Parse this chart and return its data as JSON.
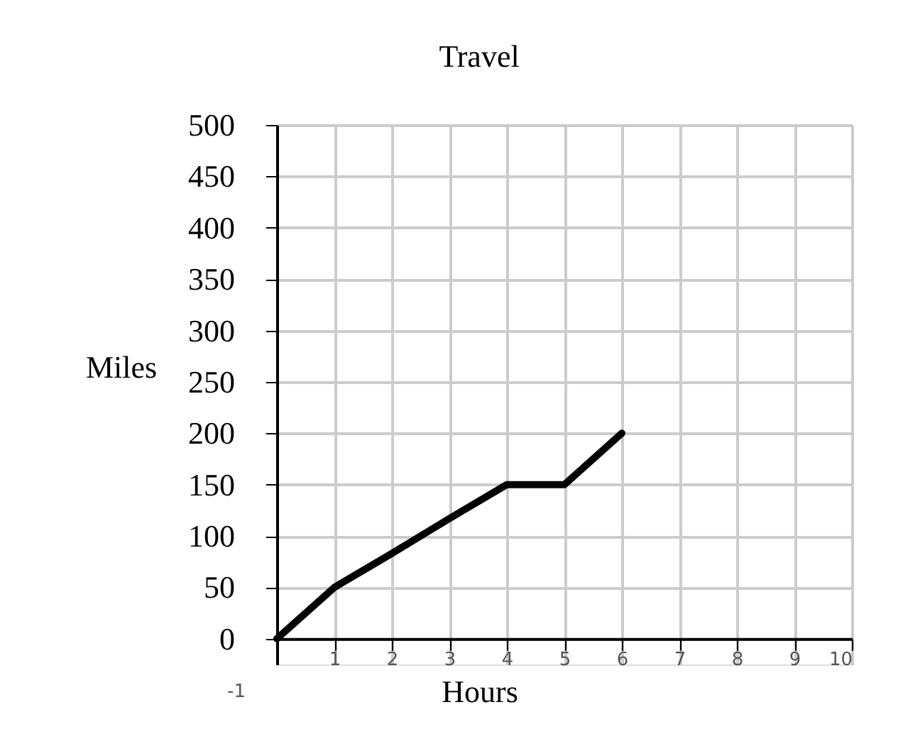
{
  "chart_data": {
    "type": "line",
    "title": "Travel",
    "xlabel": "Hours",
    "ylabel": "Miles",
    "x": [
      0,
      1,
      2,
      3,
      4,
      5,
      6
    ],
    "series": [
      {
        "color": "#000000",
        "values": [
          0,
          50,
          83,
          117,
          150,
          150,
          200
        ]
      }
    ],
    "xlim": [
      0,
      10
    ],
    "xticks": [
      1,
      2,
      3,
      4,
      5,
      6,
      7,
      8,
      9,
      10
    ],
    "ylim": [
      -25,
      500
    ],
    "yticks": [
      0,
      50,
      100,
      150,
      200,
      250,
      300,
      350,
      400,
      450,
      500
    ],
    "annotations": [
      "-1"
    ],
    "grid": true,
    "marker": "none",
    "line_style": "solid"
  }
}
